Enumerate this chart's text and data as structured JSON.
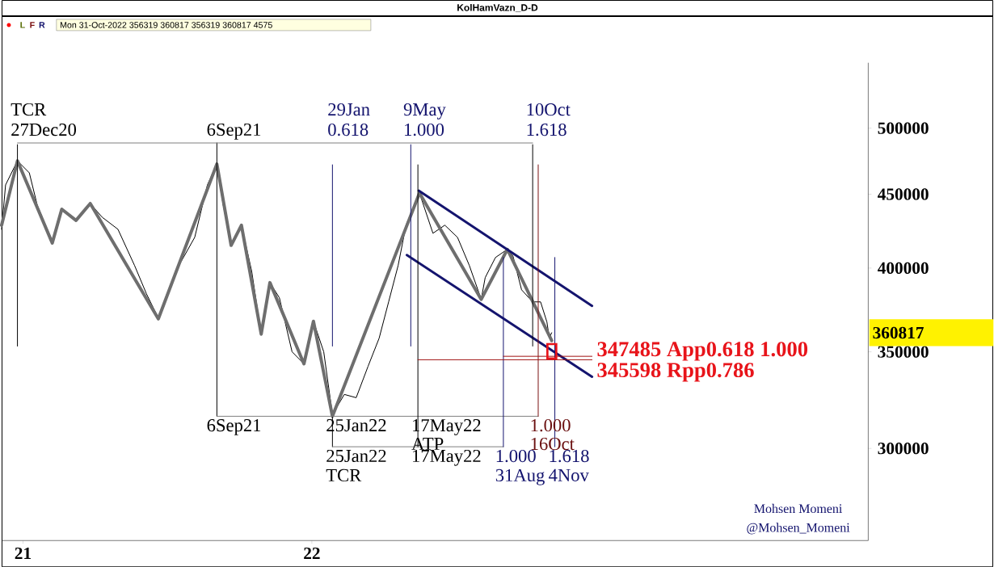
{
  "chart_data": {
    "type": "line",
    "title": "KolHamVazn_D-D",
    "xlim": [
      "2020-12-05",
      "2023-12-05"
    ],
    "ylim": [
      259000,
      555000
    ],
    "log": "y",
    "xticks": [
      {
        "value": "2021-01-01",
        "label": "21"
      },
      {
        "value": "2022-01-01",
        "label": "22"
      }
    ],
    "yticks": [
      300000,
      350000,
      400000,
      450000,
      500000
    ],
    "series": [
      {
        "color": "#000000",
        "x": [
          "2020-12-05",
          "2020-12-10",
          "2020-12-25",
          "2021-01-09",
          "2021-01-19",
          "2021-02-07",
          "2021-02-19",
          "2021-03-09",
          "2021-03-27",
          "2021-04-11",
          "2021-05-01",
          "2021-05-22",
          "2021-06-06",
          "2021-06-21",
          "2021-07-02",
          "2021-07-17",
          "2021-08-06",
          "2021-08-22",
          "2021-09-03",
          "2021-09-11",
          "2021-09-21",
          "2021-10-04",
          "2021-10-17",
          "2021-10-29",
          "2021-11-09",
          "2021-11-21",
          "2021-12-07",
          "2021-12-22",
          "2022-01-03",
          "2022-01-16",
          "2022-01-27",
          "2022-02-11",
          "2022-02-26",
          "2022-03-13",
          "2022-03-27",
          "2022-04-08",
          "2022-04-20",
          "2022-04-30",
          "2022-05-17",
          "2022-06-03",
          "2022-06-18",
          "2022-07-04",
          "2022-07-19",
          "2022-08-03",
          "2022-08-08",
          "2022-08-21",
          "2022-09-05",
          "2022-09-12",
          "2022-09-23",
          "2022-10-07",
          "2022-10-17",
          "2022-10-25",
          "2022-10-28",
          "2022-10-31"
        ],
        "values": [
          425500,
          456700,
          474600,
          465600,
          442200,
          417400,
          439400,
          431600,
          443400,
          433800,
          425500,
          401600,
          383900,
          369400,
          383900,
          401600,
          420100,
          456700,
          472200,
          442200,
          414700,
          428300,
          398000,
          360000,
          390900,
          381500,
          350000,
          343300,
          367500,
          350000,
          316600,
          327000,
          325300,
          342000,
          357700,
          379000,
          401600,
          428300,
          450800,
          422800,
          428300,
          420100,
          401600,
          380500,
          394000,
          406800,
          412100,
          407900,
          386400,
          379000,
          379000,
          367000,
          357700,
          360817
        ]
      },
      {
        "color": "#6e6e6e",
        "x": [
          "2020-12-05",
          "2020-12-25",
          "2021-02-07",
          "2021-02-19",
          "2021-03-09",
          "2021-03-27",
          "2021-06-21",
          "2021-09-03",
          "2021-09-21",
          "2021-10-04",
          "2021-10-29",
          "2021-11-09",
          "2021-12-22",
          "2022-01-03",
          "2022-01-27",
          "2022-05-17",
          "2022-08-03",
          "2022-09-05",
          "2022-10-31"
        ],
        "values": [
          428300,
          474600,
          416300,
          439400,
          431600,
          443400,
          368900,
          472200,
          414700,
          428300,
          360000,
          390900,
          343300,
          367500,
          315800,
          450800,
          380500,
          412100,
          356319
        ]
      },
      {
        "color": "#14146e",
        "x": [
          "2022-05-16",
          "2022-12-21"
        ],
        "values": [
          452600,
          376600
        ]
      },
      {
        "color": "#14146e",
        "x": [
          "2022-05-01",
          "2022-12-21"
        ],
        "values": [
          408400,
          336300
        ]
      },
      {
        "color": "#000000",
        "x": [
          "2020-12-25",
          "2020-12-25"
        ],
        "values": [
          487000,
          353200
        ]
      },
      {
        "color": "#000000",
        "x": [
          "2021-09-03",
          "2021-09-03"
        ],
        "values": [
          488300,
          315800
        ]
      },
      {
        "color": "#808080",
        "x": [
          "2020-12-25",
          "2022-10-07"
        ],
        "values": [
          488300,
          488300
        ]
      },
      {
        "color": "#14146e",
        "x": [
          "2022-01-27",
          "2022-01-27"
        ],
        "values": [
          471600,
          353200
        ]
      },
      {
        "color": "#000000",
        "x": [
          "2022-01-27",
          "2022-01-27"
        ],
        "values": [
          315800,
          300800
        ]
      },
      {
        "color": "#808080",
        "x": [
          "2021-09-03",
          "2022-10-14"
        ],
        "values": [
          315800,
          315800
        ]
      },
      {
        "color": "#808080",
        "x": [
          "2022-01-27",
          "2022-08-31"
        ],
        "values": [
          300800,
          300800
        ]
      },
      {
        "color": "#14146e",
        "x": [
          "2022-05-06",
          "2022-05-06"
        ],
        "values": [
          487000,
          353200
        ]
      },
      {
        "color": "#000000",
        "x": [
          "2022-05-15",
          "2022-05-15"
        ],
        "values": [
          471600,
          300800
        ]
      },
      {
        "color": "#14146e",
        "x": [
          "2022-08-31",
          "2022-08-31"
        ],
        "values": [
          406800,
          300800
        ]
      },
      {
        "color": "#000000",
        "x": [
          "2022-10-07",
          "2022-10-07"
        ],
        "values": [
          487000,
          353200
        ]
      },
      {
        "color": "#7a1010",
        "x": [
          "2022-10-14",
          "2022-10-14"
        ],
        "values": [
          471600,
          315800
        ]
      },
      {
        "color": "#14146e",
        "x": [
          "2022-11-04",
          "2022-11-04"
        ],
        "values": [
          406800,
          300800
        ]
      },
      {
        "color": "#a01010",
        "x": [
          "2022-05-15",
          "2022-12-21"
        ],
        "values": [
          345598,
          345598
        ]
      },
      {
        "color": "#a01010",
        "x": [
          "2022-08-31",
          "2022-12-21"
        ],
        "values": [
          347485,
          347485
        ]
      }
    ],
    "annotations": [
      "Mon 31-Oct-2022   356319   360817   356319   360817   4575",
      "L",
      "F",
      "R",
      "Mohsen Momeni",
      "@Mohsen_Momeni",
      "360817",
      "TCR",
      "27Dec20",
      "6Sep21",
      "29Jan",
      "0.618",
      "9May",
      "1.000",
      "10Oct",
      "1.618",
      "6Sep21",
      "25Jan22",
      "17May22",
      "ATP",
      "1.000",
      "16Oct",
      "25Jan22",
      "TCR",
      "17May22",
      "1.000",
      "1.618",
      "31Aug",
      "4Nov",
      "347485 App0.618 1.000",
      "345598 Rpp0.786"
    ]
  }
}
